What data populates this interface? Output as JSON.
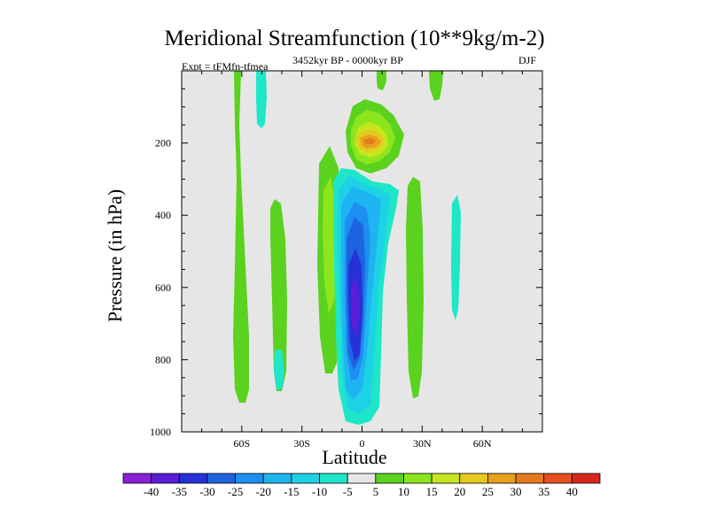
{
  "chart_data": {
    "type": "contour",
    "title": "Meridional Streamfunction (10**9kg/m-2)",
    "subtitle_left": "Expt = tFMfn-tfmea",
    "subtitle_center": "3452kyr BP - 0000kyr BP",
    "subtitle_right": "DJF",
    "xlabel": "Latitude",
    "ylabel": "Pressure (in hPa)",
    "xlim": [
      -90,
      90
    ],
    "ylim": [
      0,
      1000
    ],
    "x_ticks": [
      -60,
      -30,
      0,
      30,
      60
    ],
    "x_tick_labels": [
      "60S",
      "30S",
      "0",
      "30N",
      "60N"
    ],
    "y_ticks": [
      200,
      400,
      600,
      800,
      1000
    ],
    "y_tick_labels": [
      "200",
      "400",
      "600",
      "800",
      "1000"
    ],
    "colorbar": {
      "labels": [
        "-40",
        "-35",
        "-30",
        "-25",
        "-20",
        "-15",
        "-10",
        "-5",
        "5",
        "10",
        "15",
        "20",
        "25",
        "30",
        "35",
        "40"
      ],
      "colors": [
        "#8c1fd8",
        "#5a1ed8",
        "#2632d8",
        "#1e64e0",
        "#1e8ef0",
        "#1eb4f0",
        "#1ed2e6",
        "#1ee6c8",
        "#e6e6e6",
        "#5ad21e",
        "#8ce61e",
        "#c8e61e",
        "#e6c81e",
        "#e6a01e",
        "#e6781e",
        "#e6501e",
        "#d8281e"
      ]
    },
    "levels": [
      -40,
      -35,
      -30,
      -25,
      -20,
      -15,
      -10,
      -5,
      5,
      10,
      15,
      20,
      25,
      30,
      35,
      40
    ],
    "features": [
      {
        "name": "northern-positive-cell",
        "lat": 4,
        "pressure": 180,
        "peak": 30
      },
      {
        "name": "tropical-negative-cell",
        "lat": -3,
        "pressure": 650,
        "peak": -35
      },
      {
        "name": "southern-positive-band",
        "lat": -12,
        "pressure": 400,
        "peak": 10
      },
      {
        "name": "northern-positive-band",
        "lat": 27,
        "pressure": 500,
        "peak": 10
      }
    ]
  }
}
